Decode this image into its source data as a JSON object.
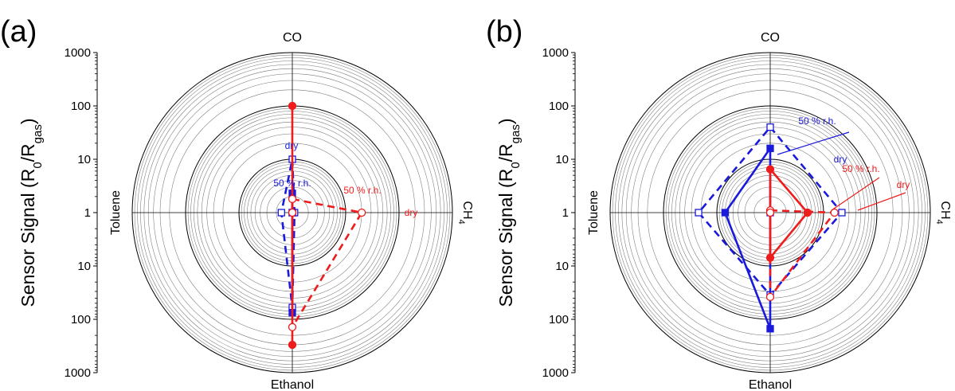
{
  "chart_data": [
    {
      "panel_label": "(a)",
      "type": "radar",
      "scale": "log",
      "radial_range": [
        1,
        1000
      ],
      "rlabel": "Sensor Signal (R0/Rgas)",
      "rticks": [
        "1000",
        "100",
        "10",
        "1",
        "10",
        "100",
        "1000"
      ],
      "axes": [
        "CO",
        "CH4",
        "Ethanol",
        "Toluene"
      ],
      "grid": true,
      "series": [
        {
          "name": "dry",
          "style": "dashed",
          "marker": "open",
          "color": "#1a1adc",
          "values": {
            "CO": 10,
            "CH4": 1.1,
            "Ethanol": 60,
            "Toluene": 1.6
          }
        },
        {
          "name": "50 % r.h.",
          "style": "solid",
          "marker": "filled",
          "color": "#1a1adc",
          "values": {
            "CO": 2.3,
            "CH4": 0.8,
            "Ethanol": 75,
            "Toluene": 1.0
          }
        },
        {
          "name": "50 % r.h.",
          "style": "solid",
          "marker": "filled",
          "color": "#ee1c1c",
          "values": {
            "CO": 100,
            "CH4": 1.0,
            "Ethanol": 300,
            "Toluene": 1.0
          }
        },
        {
          "name": "dry",
          "style": "dashed",
          "marker": "open",
          "color": "#ee1c1c",
          "values": {
            "CO": 1.8,
            "CH4": 20,
            "Ethanol": 140,
            "Toluene": 1.0
          }
        }
      ],
      "annotations": [
        {
          "text": "dry",
          "color": "#1a1adc"
        },
        {
          "text": "50 % r.h.",
          "color": "#1a1adc"
        },
        {
          "text": "50 % r.h.",
          "color": "#ee1c1c"
        },
        {
          "text": "dry",
          "color": "#ee1c1c"
        }
      ]
    },
    {
      "panel_label": "(b)",
      "type": "radar",
      "scale": "log",
      "radial_range": [
        1,
        1000
      ],
      "rlabel": "Sensor Signal (R0/Rgas)",
      "rticks": [
        "1000",
        "100",
        "10",
        "1",
        "10",
        "100",
        "1000"
      ],
      "axes": [
        "CO",
        "CH4",
        "Ethanol",
        "Toluene"
      ],
      "grid": true,
      "series": [
        {
          "name": "dry",
          "style": "dashed",
          "marker": "open",
          "color": "#1a1adc",
          "values": {
            "CO": 40,
            "CH4": 22,
            "Ethanol": 35,
            "Toluene": 22
          }
        },
        {
          "name": "50 % r.h.",
          "style": "solid",
          "marker": "filled",
          "color": "#1a1adc",
          "values": {
            "CO": 16,
            "CH4": 0.6,
            "Ethanol": 150,
            "Toluene": 7
          }
        },
        {
          "name": "50 % r.h.",
          "style": "solid",
          "marker": "filled",
          "color": "#ee1c1c",
          "values": {
            "CO": 6.5,
            "CH4": 5,
            "Ethanol": 7,
            "Toluene": 1.0
          }
        },
        {
          "name": "dry",
          "style": "dashed",
          "marker": "open",
          "color": "#ee1c1c",
          "values": {
            "CO": 1.1,
            "CH4": 16,
            "Ethanol": 38,
            "Toluene": 1.0
          }
        }
      ],
      "annotations": [
        {
          "text": "50 % r.h.",
          "color": "#1a1adc"
        },
        {
          "text": "dry",
          "color": "#1a1adc"
        },
        {
          "text": "50 % r.h.",
          "color": "#ee1c1c"
        },
        {
          "text": "dry",
          "color": "#ee1c1c"
        }
      ]
    }
  ]
}
